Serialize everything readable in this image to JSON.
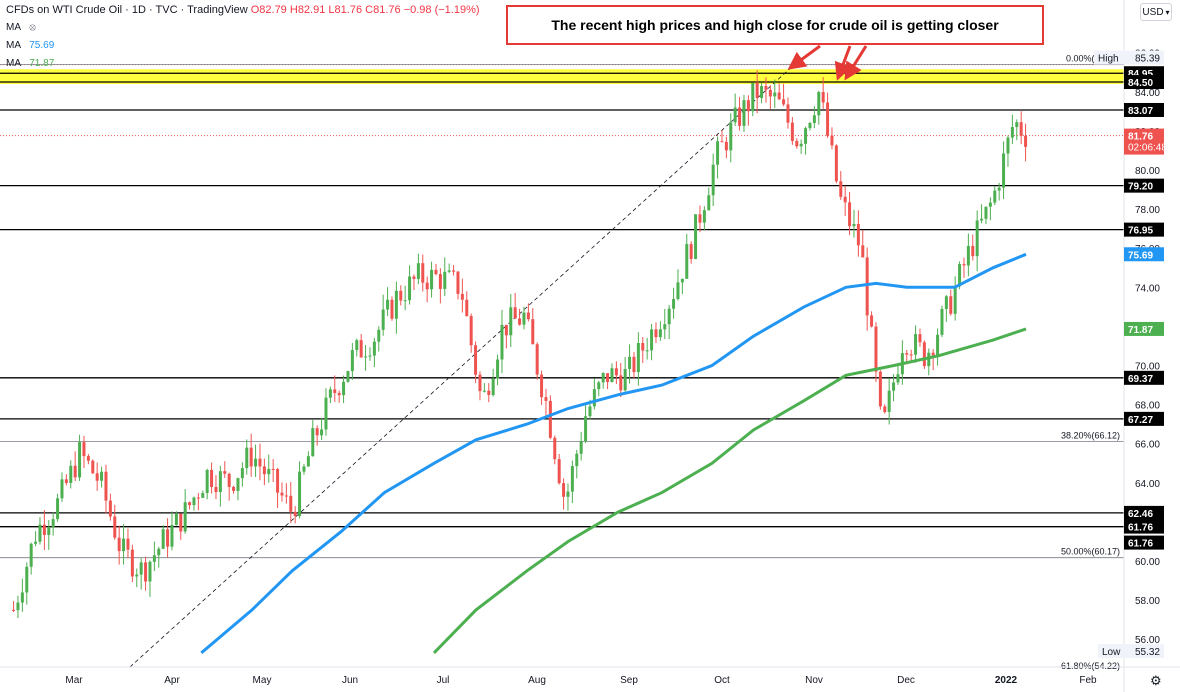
{
  "header": {
    "symbol": "CFDs on WTI Crude Oil · 1D · TVC · TradingView",
    "open": "O82.79",
    "high": "H82.91",
    "low": "L81.76",
    "close": "C81.76",
    "change": "−0.98 (−1.19%)"
  },
  "indicators": {
    "ma1_label": "MA",
    "ma2_label": "MA",
    "ma2_value": "75.69",
    "ma3_label": "MA",
    "ma3_value": "71.87"
  },
  "currency_button": "USD",
  "callout_text": "The recent high prices and high close for crude oil is getting closer",
  "colors": {
    "up": "#26a69a",
    "up_candle": "#4caf50",
    "down": "#ef5350",
    "ma100": "#2196f3",
    "ma200": "#4caf50",
    "highlight": "#ffff00",
    "price_label": "#ef5350"
  },
  "chart_data": {
    "type": "line",
    "title": "",
    "xlabel": "",
    "ylabel": "",
    "ylim": [
      55,
      87
    ],
    "x_ticks": [
      "Mar",
      "Apr",
      "May",
      "Jun",
      "Jul",
      "Aug",
      "Sep",
      "Oct",
      "Nov",
      "Dec",
      "2022",
      "Feb"
    ],
    "y_ticks": [
      56.0,
      58.0,
      60.0,
      62.0,
      64.0,
      66.0,
      68.0,
      70.0,
      72.0,
      74.0,
      76.0,
      78.0,
      80.0,
      82.0,
      84.0,
      86.0
    ],
    "series": [
      {
        "x": [
          "Feb 13",
          "Feb 20",
          "Feb 27",
          "Mar 6",
          "Mar 13",
          "Mar 20",
          "Mar 27",
          "Apr 3",
          "Apr 10",
          "Apr 17",
          "Apr 24",
          "May 1",
          "May 8",
          "May 15",
          "May 22",
          "May 29",
          "Jun 5",
          "Jun 12",
          "Jun 19",
          "Jun 26",
          "Jul 3",
          "Jul 10",
          "Jul 17",
          "Jul 24",
          "Jul 31",
          "Aug 7",
          "Aug 14",
          "Aug 21",
          "Aug 28",
          "Sep 4",
          "Sep 11",
          "Sep 18",
          "Sep 25",
          "Oct 2",
          "Oct 9",
          "Oct 16",
          "Oct 23",
          "Oct 30",
          "Nov 6",
          "Nov 13",
          "Nov 20",
          "Nov 27",
          "Dec 4",
          "Dec 11",
          "Dec 18",
          "Dec 25",
          "Jan 1",
          "Jan 8",
          "Jan 12"
        ],
        "values": [
          57.5,
          61.5,
          63.0,
          65.5,
          64.0,
          60.5,
          59.5,
          61.0,
          62.5,
          64.5,
          64.0,
          65.5,
          64.0,
          62.5,
          66.0,
          68.5,
          70.5,
          71.5,
          73.5,
          74.5,
          74.5,
          74.0,
          68.0,
          72.0,
          72.5,
          68.5,
          63.0,
          67.5,
          69.5,
          69.5,
          71.5,
          73.5,
          76.5,
          80.5,
          82.5,
          84.0,
          83.5,
          81.5,
          84.0,
          78.5,
          76.0,
          66.5,
          71.5,
          70.5,
          73.0,
          76.0,
          78.5,
          82.5,
          81.8
        ]
      },
      {
        "name": "MA",
        "x": [
          "Apr 15",
          "May 1",
          "May 15",
          "Jun 1",
          "Jun 15",
          "Jul 1",
          "Jul 15",
          "Aug 1",
          "Aug 15",
          "Sep 1",
          "Sep 15",
          "Oct 1",
          "Oct 15",
          "Nov 1",
          "Nov 15",
          "Nov 25",
          "Dec 5",
          "Dec 20",
          "Jan 1",
          "Jan 12"
        ],
        "values": [
          55.3,
          57.5,
          59.5,
          61.5,
          63.5,
          65.0,
          66.2,
          67.0,
          67.8,
          68.5,
          69.0,
          70.0,
          71.5,
          73.0,
          74.0,
          74.2,
          74.0,
          74.0,
          75.0,
          75.69
        ]
      },
      {
        "name": "MA",
        "x": [
          "Jul 1",
          "Jul 15",
          "Aug 1",
          "Aug 15",
          "Sep 1",
          "Sep 15",
          "Oct 1",
          "Oct 15",
          "Nov 1",
          "Nov 15",
          "Dec 1",
          "Dec 15",
          "Jan 1",
          "Jan 12"
        ],
        "values": [
          55.3,
          57.5,
          59.5,
          61.0,
          62.5,
          63.5,
          65.0,
          66.7,
          68.2,
          69.5,
          70.0,
          70.5,
          71.3,
          71.87
        ]
      }
    ],
    "horizontal_levels": [
      85.39,
      84.95,
      84.5,
      83.07,
      79.2,
      76.95,
      69.37,
      67.27,
      62.46,
      61.76,
      61.76
    ],
    "highlight_band": [
      84.5,
      84.95
    ],
    "fibonacci": [
      {
        "label": "0.00%(85.39)",
        "value": 85.39
      },
      {
        "label": "38.20%(66.12)",
        "value": 66.12
      },
      {
        "label": "50.00%(60.17)",
        "value": 60.17
      },
      {
        "label": "61.80%(54.22)",
        "value": 54.22
      }
    ],
    "price_labels": [
      {
        "text": "High",
        "value": 85.39
      },
      {
        "text": "84.95",
        "value": 84.95
      },
      {
        "text": "84.50",
        "value": 84.5
      },
      {
        "text": "83.07",
        "value": 83.07
      },
      {
        "text": "81.76",
        "value": 81.76
      },
      {
        "text": "02:06:48",
        "value": 81.76
      },
      {
        "text": "79.20",
        "value": 79.2
      },
      {
        "text": "76.95",
        "value": 76.95
      },
      {
        "text": "75.69",
        "value": 75.69
      },
      {
        "text": "71.87",
        "value": 71.87
      },
      {
        "text": "69.37",
        "value": 69.37
      },
      {
        "text": "67.27",
        "value": 67.27
      },
      {
        "text": "62.46",
        "value": 62.46
      },
      {
        "text": "61.76",
        "value": 61.76
      },
      {
        "text": "61.76",
        "value": 61.76
      },
      {
        "text": "Low",
        "value": 55.32
      }
    ],
    "high_value": "85.39",
    "low_value": "55.32",
    "current_price": "81.76",
    "countdown": "02:06:48",
    "grid": false,
    "legend": "top-left"
  }
}
